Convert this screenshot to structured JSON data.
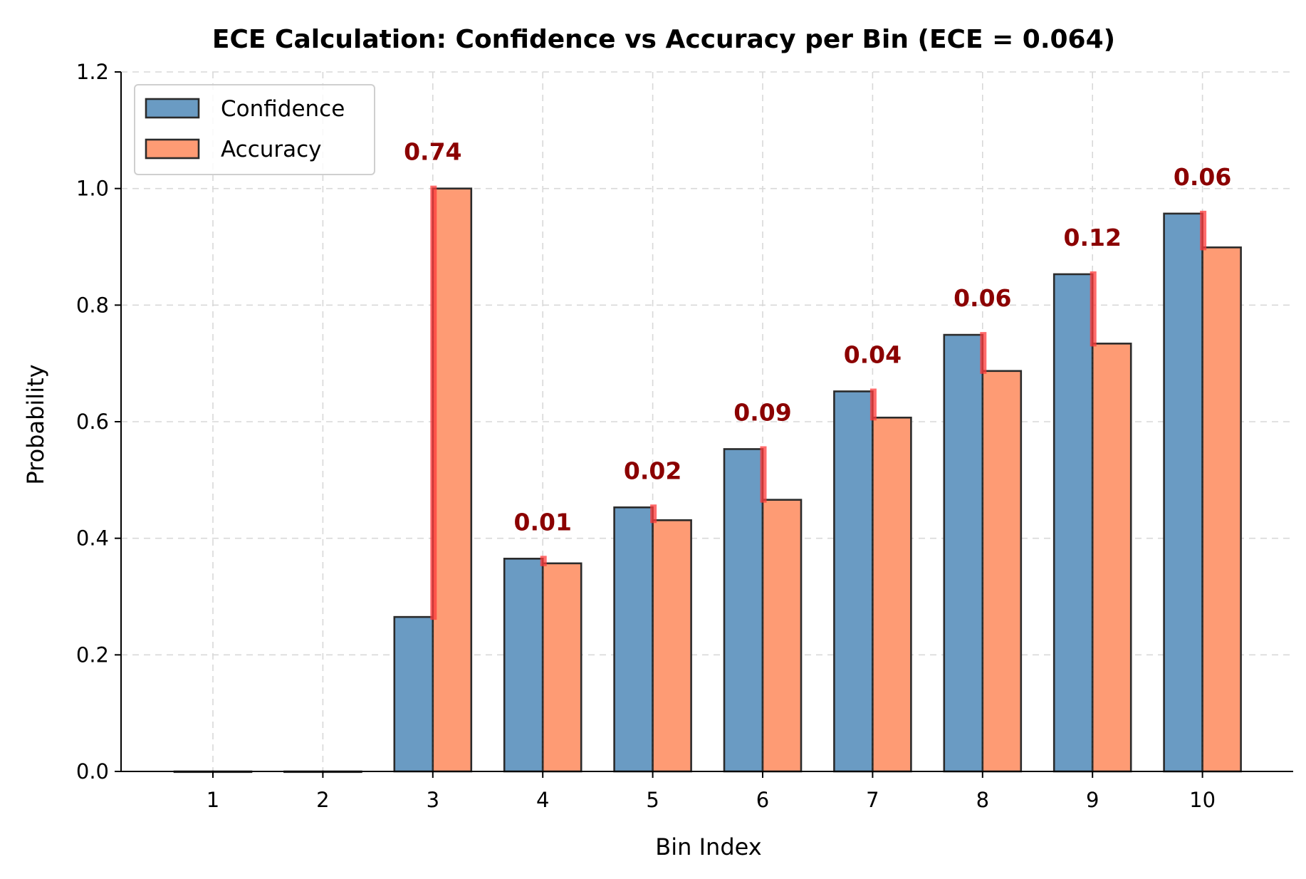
{
  "chart_data": {
    "type": "bar",
    "title": "ECE Calculation: Confidence vs Accuracy per Bin (ECE = 0.064)",
    "xlabel": "Bin Index",
    "ylabel": "Probability",
    "ylim": [
      0,
      1.2
    ],
    "yticks": [
      0.0,
      0.2,
      0.4,
      0.6,
      0.8,
      1.0,
      1.2
    ],
    "ytick_labels": [
      "0.0",
      "0.2",
      "0.4",
      "0.6",
      "0.8",
      "1.0",
      "1.2"
    ],
    "categories": [
      "1",
      "2",
      "3",
      "4",
      "5",
      "6",
      "7",
      "8",
      "9",
      "10"
    ],
    "series": [
      {
        "name": "Confidence",
        "color": "#6a9bc3",
        "values": [
          0,
          0,
          0.265,
          0.365,
          0.453,
          0.553,
          0.652,
          0.749,
          0.853,
          0.957
        ]
      },
      {
        "name": "Accuracy",
        "color": "#fe9b74",
        "values": [
          0,
          0,
          1.0,
          0.357,
          0.431,
          0.466,
          0.607,
          0.687,
          0.734,
          0.899
        ]
      }
    ],
    "gap_labels": [
      "",
      "",
      "0.74",
      "0.01",
      "0.02",
      "0.09",
      "0.04",
      "0.06",
      "0.12",
      "0.06"
    ],
    "gap_line_color": "#ff3b3b",
    "grid": true,
    "legend_position": "top-left"
  }
}
